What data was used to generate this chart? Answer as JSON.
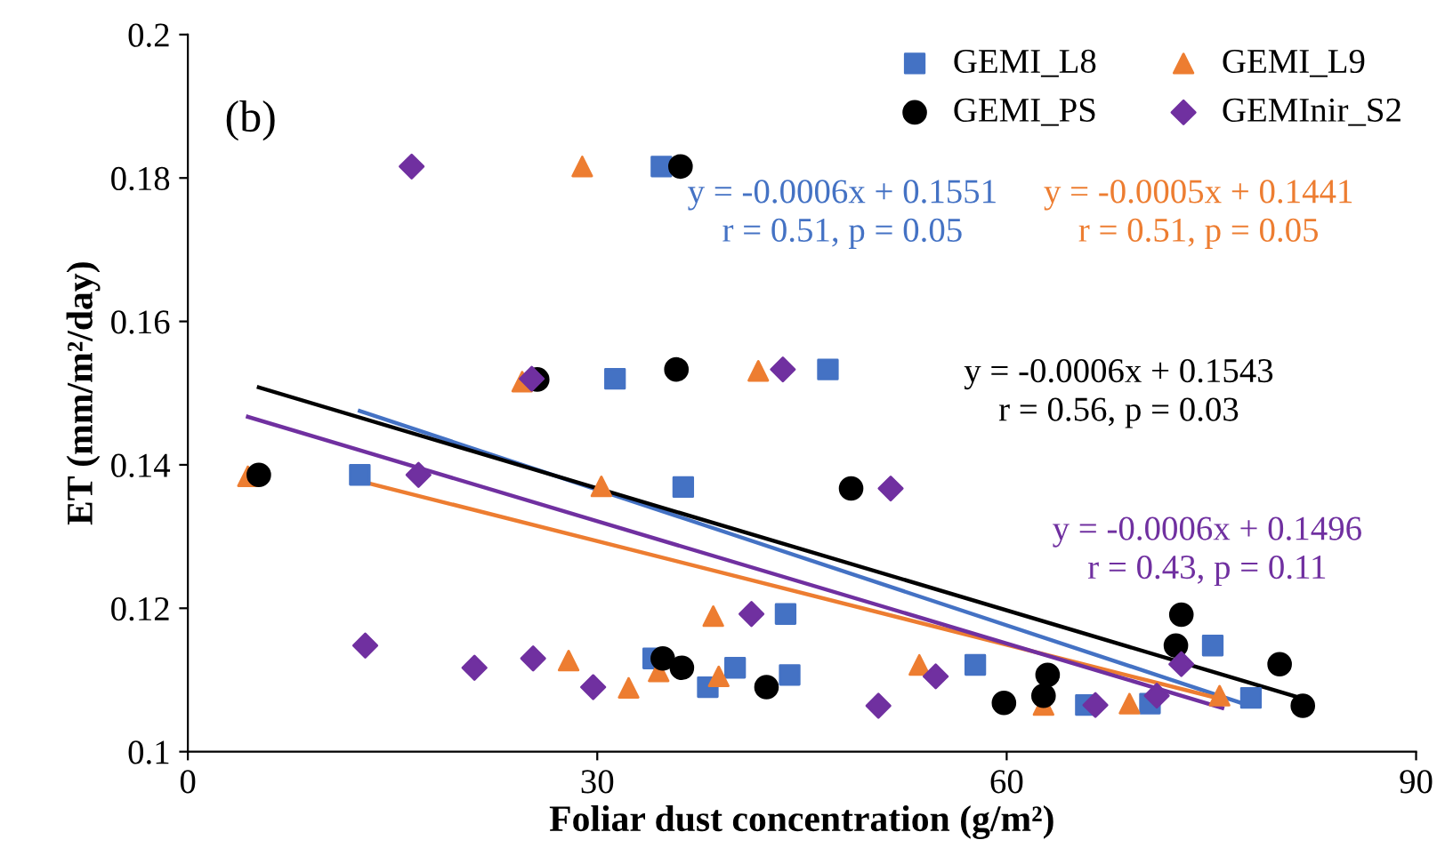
{
  "chart_data": {
    "type": "scatter",
    "xlabel": "Foliar dust concentration (g/m²)",
    "ylabel": "ET (mm/m²/day)",
    "xlim": [
      0,
      90
    ],
    "xticks": [
      0,
      30,
      60,
      90
    ],
    "ylim": [
      0.1,
      0.2
    ],
    "yticks": [
      0.1,
      0.12,
      0.14,
      0.16,
      0.18,
      0.2
    ],
    "grid": false,
    "legend": "top right",
    "series": [
      {
        "name": "GEMI_L8",
        "color": "#4472c4",
        "marker": "square",
        "x": [
          12.6,
          31.3,
          46.9,
          36.3,
          43.8,
          34.1,
          38.1,
          40.1,
          44.1,
          57.7,
          65.8,
          70.5,
          75.1,
          77.9,
          34.7
        ],
        "values": [
          0.1386,
          0.152,
          0.1533,
          0.1369,
          0.1192,
          0.113,
          0.109,
          0.1117,
          0.1107,
          0.1121,
          0.1065,
          0.1067,
          0.1148,
          0.1075,
          0.1816
        ]
      },
      {
        "name": "GEMI_L9",
        "color": "#ed7d31",
        "marker": "triangle",
        "x": [
          4.4,
          24.5,
          30.3,
          27.9,
          32.3,
          41.8,
          38.5,
          34.5,
          38.9,
          53.6,
          62.7,
          69.0,
          75.6,
          28.9
        ],
        "values": [
          0.1384,
          0.1516,
          0.137,
          0.1127,
          0.1089,
          0.1531,
          0.1189,
          0.1112,
          0.1105,
          0.1121,
          0.1065,
          0.1067,
          0.1078,
          0.1816
        ]
      },
      {
        "name": "GEMI_PS",
        "color": "#000000",
        "marker": "circle",
        "x": [
          5.2,
          25.6,
          35.8,
          48.6,
          34.8,
          36.2,
          42.4,
          59.8,
          62.7,
          63.0,
          72.8,
          72.4,
          80.0,
          81.7,
          36.1
        ],
        "values": [
          0.1386,
          0.1519,
          0.1533,
          0.1367,
          0.113,
          0.1117,
          0.109,
          0.1068,
          0.1078,
          0.1107,
          0.1191,
          0.1148,
          0.1122,
          0.1064,
          0.1816
        ]
      },
      {
        "name": "GEMInir_S2",
        "color": "#7030a0",
        "marker": "diamond",
        "x": [
          16.9,
          25.2,
          43.6,
          51.5,
          41.3,
          13.0,
          21.0,
          25.3,
          29.7,
          54.8,
          50.6,
          66.5,
          71.0,
          72.8,
          16.4
        ],
        "values": [
          0.1386,
          0.152,
          0.1533,
          0.1367,
          0.1192,
          0.1148,
          0.1117,
          0.113,
          0.109,
          0.1105,
          0.1064,
          0.1065,
          0.1078,
          0.1122,
          0.1816
        ]
      },
      {
        "type": "line",
        "color": "#4472c4",
        "marker": "none",
        "x": [
          12.6,
          77.8
        ],
        "values": [
          0.1475,
          0.1064
        ]
      },
      {
        "type": "line",
        "color": "#ed7d31",
        "marker": "none",
        "x": [
          13.1,
          75.6
        ],
        "values": [
          0.1375,
          0.1074
        ]
      },
      {
        "type": "line",
        "color": "#000000",
        "marker": "none",
        "x": [
          5.2,
          81.7
        ],
        "values": [
          0.1508,
          0.1074
        ]
      },
      {
        "type": "line",
        "color": "#7030a0",
        "marker": "none",
        "x": [
          4.4,
          75.8
        ],
        "values": [
          0.1467,
          0.1061
        ]
      }
    ],
    "annotations": [
      "(b)",
      "y = -0.0006x + 0.1551\nr = 0.51, p = 0.05",
      "y = -0.0005x + 0.1441\nr = 0.51, p = 0.05",
      "y = -0.0006x + 0.1543\nr = 0.56, p = 0.03",
      "y = -0.0006x + 0.1496\nr = 0.43, p = 0.11"
    ]
  }
}
